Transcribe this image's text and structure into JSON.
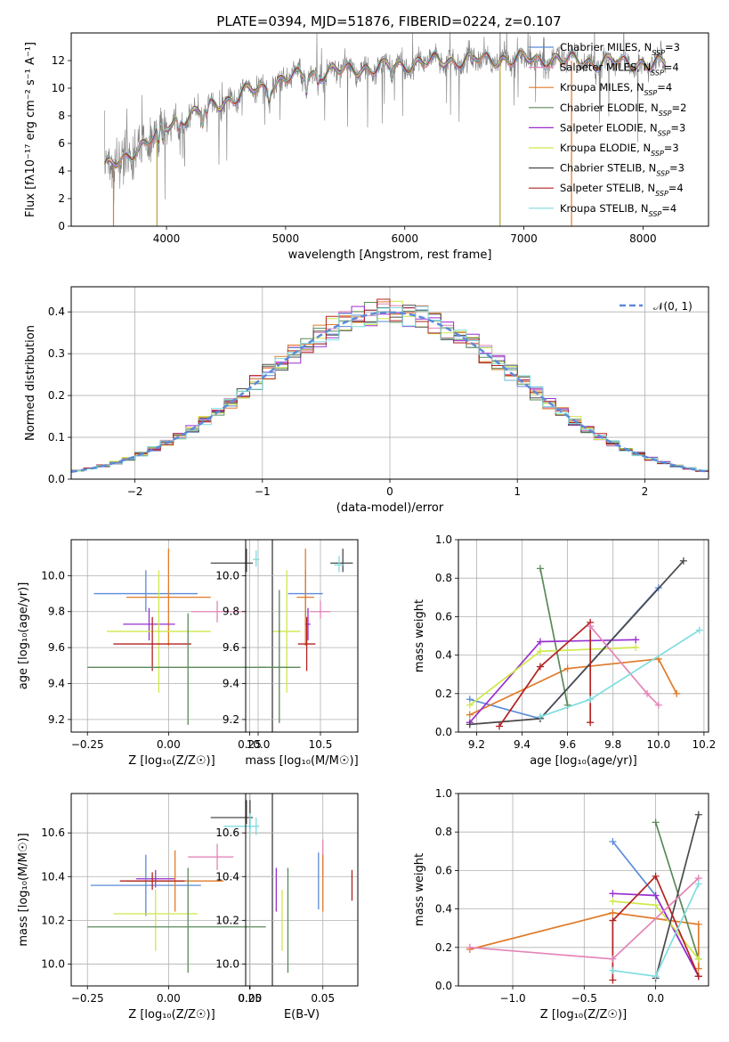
{
  "title": "PLATE=0394, MJD=51876, FIBERID=0224, z=0.107",
  "colors": {
    "c1": "#5b8bd9",
    "c2": "#e07b2a",
    "c3": "#5a8a5a",
    "c4": "#9a2fd0",
    "c5": "#cfe84a",
    "c6": "#4a4a4a",
    "c7": "#b22222",
    "c8": "#e484b8",
    "c9": "#7fdde0",
    "data": "#7f7f7f",
    "normal": "#5b8bd9"
  },
  "spectrum": {
    "xlabel": "wavelength [Angstrom, rest frame]",
    "ylabel": "Flux [fλ10⁻¹⁷ erg cm⁻² s⁻¹ A⁻¹]",
    "xlim": [
      3200,
      8550
    ],
    "ylim": [
      0,
      14
    ],
    "xticks": [
      "4000",
      "5000",
      "6000",
      "7000",
      "8000"
    ],
    "yticks": [
      "0",
      "2",
      "4",
      "6",
      "8",
      "10",
      "12"
    ],
    "continuum": [
      [
        3480,
        4.2
      ],
      [
        3600,
        4.6
      ],
      [
        3700,
        5.3
      ],
      [
        3800,
        5.9
      ],
      [
        3900,
        6.5
      ],
      [
        4000,
        7.2
      ],
      [
        4100,
        7.8
      ],
      [
        4200,
        8.0
      ],
      [
        4300,
        8.3
      ],
      [
        4400,
        8.8
      ],
      [
        4500,
        9.1
      ],
      [
        4600,
        9.4
      ],
      [
        4700,
        9.8
      ],
      [
        4800,
        10.0
      ],
      [
        4900,
        10.3
      ],
      [
        5000,
        10.7
      ],
      [
        5200,
        11.0
      ],
      [
        5400,
        11.2
      ],
      [
        5600,
        11.4
      ],
      [
        5800,
        11.5
      ],
      [
        6000,
        11.7
      ],
      [
        6200,
        11.9
      ],
      [
        6400,
        12.0
      ],
      [
        6600,
        12.1
      ],
      [
        6800,
        12.1
      ],
      [
        7000,
        12.1
      ],
      [
        7200,
        12.1
      ],
      [
        7400,
        12.0
      ],
      [
        7600,
        11.9
      ],
      [
        7800,
        11.9
      ],
      [
        8000,
        11.8
      ],
      [
        8100,
        11.7
      ],
      [
        8190,
        11.8
      ]
    ],
    "legend": [
      {
        "label": "Chabrier MILES, N",
        "sub": "SSP",
        "suffix": "=3",
        "color": "#5b8bd9"
      },
      {
        "label": "Salpeter MILES, N",
        "sub": "SSP",
        "suffix": "=4",
        "color": "#e484b8"
      },
      {
        "label": "Kroupa MILES, N",
        "sub": "SSP",
        "suffix": "=4",
        "color": "#e07b2a"
      },
      {
        "label": "Chabrier ELODIE, N",
        "sub": "SSP",
        "suffix": "=2",
        "color": "#5a8a5a"
      },
      {
        "label": "Salpeter ELODIE, N",
        "sub": "SSP",
        "suffix": "=3",
        "color": "#9a2fd0"
      },
      {
        "label": "Kroupa ELODIE, N",
        "sub": "SSP",
        "suffix": "=3",
        "color": "#cfe84a"
      },
      {
        "label": "Chabrier STELIB, N",
        "sub": "SSP",
        "suffix": "=3",
        "color": "#4a4a4a"
      },
      {
        "label": "Salpeter STELIB, N",
        "sub": "SSP",
        "suffix": "=4",
        "color": "#b22222"
      },
      {
        "label": "Kroupa STELIB, N",
        "sub": "SSP",
        "suffix": "=4",
        "color": "#7fdde0"
      }
    ]
  },
  "residuals": {
    "xlabel": "(data-model)/error",
    "ylabel": "Normed distribution",
    "xlim": [
      -2.5,
      2.5
    ],
    "ylim": [
      0,
      0.46
    ],
    "xticks": [
      "-2",
      "-1",
      "0",
      "1",
      "2"
    ],
    "yticks": [
      "0.0",
      "0.1",
      "0.2",
      "0.3",
      "0.4"
    ],
    "legend": "𝒩(0, 1)"
  },
  "chart_data": [
    {
      "type": "line",
      "title": "PLATE=0394, MJD=51876, FIBERID=0224, z=0.107",
      "xlabel": "wavelength [Angstrom, rest frame]",
      "ylabel": "Flux [fλ10⁻¹⁷ erg cm⁻² s⁻¹ A⁻¹]",
      "x_range": [
        3480,
        8190
      ],
      "ylim": [
        0,
        14
      ],
      "grid": false,
      "legend_position": "right"
    },
    {
      "type": "bar",
      "xlabel": "(data-model)/error",
      "ylabel": "Normed distribution",
      "xlim": [
        -2.5,
        2.5
      ],
      "ylim": [
        0,
        0.46
      ],
      "grid": true,
      "legend_position": "top-right",
      "series": [
        {
          "name": "𝒩(0, 1)",
          "type": "line"
        }
      ]
    },
    {
      "type": "scatter",
      "xlabel": "Z [log₁₀(Z/Z☉)]",
      "ylabel": "age  [log₁₀(age/yr)]",
      "xlim": [
        -0.3,
        0.32
      ],
      "ylim": [
        9.13,
        10.2
      ],
      "xticks": [
        "-0.25",
        "0.00",
        "0.25"
      ],
      "yticks": [
        "9.2",
        "9.4",
        "9.6",
        "9.8",
        "10.0"
      ],
      "points": [
        {
          "x": 0.24,
          "y": 10.07,
          "xerr": [
            0.11,
            0.02
          ],
          "yerr": [
            0.05,
            0.08
          ],
          "color": "#4a4a4a"
        },
        {
          "x": 0.27,
          "y": 10.09,
          "xerr": [
            0.01,
            0.01
          ],
          "yerr": [
            0.04,
            0.05
          ],
          "color": "#7fdde0"
        },
        {
          "x": -0.07,
          "y": 9.9,
          "xerr": [
            0.16,
            0.16
          ],
          "yerr": [
            0.1,
            0.13
          ],
          "color": "#5b8bd9"
        },
        {
          "x": 0.0,
          "y": 9.88,
          "xerr": [
            0.13,
            0.13
          ],
          "yerr": [
            0.27,
            0.27
          ],
          "color": "#e07b2a"
        },
        {
          "x": 0.15,
          "y": 9.8,
          "xerr": [
            0.08,
            0.08
          ],
          "yerr": [
            0.06,
            0.06
          ],
          "color": "#e484b8"
        },
        {
          "x": -0.06,
          "y": 9.73,
          "xerr": [
            0.08,
            0.08
          ],
          "yerr": [
            0.09,
            0.09
          ],
          "color": "#9a2fd0"
        },
        {
          "x": -0.03,
          "y": 9.69,
          "xerr": [
            0.16,
            0.16
          ],
          "yerr": [
            0.34,
            0.34
          ],
          "color": "#cfe84a"
        },
        {
          "x": -0.05,
          "y": 9.62,
          "xerr": [
            0.12,
            0.12
          ],
          "yerr": [
            0.15,
            0.15
          ],
          "color": "#b22222"
        },
        {
          "x": 0.06,
          "y": 9.49,
          "xerr": [
            0.31,
            0.24
          ],
          "yerr": [
            0.32,
            0.3
          ],
          "color": "#5a8a5a"
        }
      ]
    },
    {
      "type": "scatter",
      "xlabel": "mass [log₁₀(M/M☉)]",
      "ylabel": "",
      "xlim": [
        9.9,
        10.8
      ],
      "ylim": [
        9.13,
        10.2
      ],
      "xticks": [
        "10.0",
        "10.5"
      ],
      "yticks": [
        "9.2",
        "9.4",
        "9.6",
        "9.8",
        "10.0"
      ],
      "points": [
        {
          "x": 10.68,
          "y": 10.07,
          "xerr": [
            0.1,
            0.08
          ],
          "yerr": [
            0.05,
            0.08
          ],
          "color": "#4a4a4a"
        },
        {
          "x": 10.65,
          "y": 10.06,
          "xerr": [
            0.04,
            0.04
          ],
          "yerr": [
            0.04,
            0.05
          ],
          "color": "#7fdde0"
        },
        {
          "x": 10.38,
          "y": 9.9,
          "xerr": [
            0.14,
            0.14
          ],
          "yerr": [
            0.13,
            0.13
          ],
          "color": "#5b8bd9"
        },
        {
          "x": 10.38,
          "y": 9.88,
          "xerr": [
            0.07,
            0.07
          ],
          "yerr": [
            0.27,
            0.27
          ],
          "color": "#e07b2a"
        },
        {
          "x": 10.5,
          "y": 9.8,
          "xerr": [
            0.08,
            0.08
          ],
          "yerr": [
            0.04,
            0.06
          ],
          "color": "#e484b8"
        },
        {
          "x": 10.4,
          "y": 9.73,
          "xerr": [
            0.02,
            0.02
          ],
          "yerr": [
            0.09,
            0.09
          ],
          "color": "#9a2fd0"
        },
        {
          "x": 10.23,
          "y": 9.69,
          "xerr": [
            0.11,
            0.11
          ],
          "yerr": [
            0.34,
            0.34
          ],
          "color": "#cfe84a"
        },
        {
          "x": 10.39,
          "y": 9.62,
          "xerr": [
            0.07,
            0.07
          ],
          "yerr": [
            0.15,
            0.15
          ],
          "color": "#b22222"
        },
        {
          "x": 10.17,
          "y": 9.49,
          "xerr": [
            0.17,
            0.17
          ],
          "yerr": [
            0.31,
            0.43
          ],
          "color": "#5a8a5a"
        }
      ]
    },
    {
      "type": "line",
      "xlabel": "age  [log₁₀(age/yr)]",
      "ylabel": "mass weight",
      "xlim": [
        9.12,
        10.22
      ],
      "ylim": [
        0,
        1
      ],
      "xticks": [
        "9.2",
        "9.4",
        "9.6",
        "9.8",
        "10.0",
        "10.2"
      ],
      "yticks": [
        "0.0",
        "0.2",
        "0.4",
        "0.6",
        "0.8",
        "1.0"
      ],
      "series": [
        {
          "color": "#5b8bd9",
          "points": [
            [
              9.17,
              0.17
            ],
            [
              9.48,
              0.07
            ],
            [
              10.0,
              0.75
            ]
          ]
        },
        {
          "color": "#e07b2a",
          "points": [
            [
              9.17,
              0.09
            ],
            [
              9.6,
              0.33
            ],
            [
              10.0,
              0.38
            ],
            [
              10.08,
              0.2
            ]
          ]
        },
        {
          "color": "#5a8a5a",
          "points": [
            [
              9.48,
              0.85
            ],
            [
              9.6,
              0.14
            ]
          ]
        },
        {
          "color": "#9a2fd0",
          "points": [
            [
              9.17,
              0.05
            ],
            [
              9.48,
              0.47
            ],
            [
              9.9,
              0.48
            ]
          ]
        },
        {
          "color": "#cfe84a",
          "points": [
            [
              9.17,
              0.14
            ],
            [
              9.48,
              0.42
            ],
            [
              9.9,
              0.44
            ]
          ]
        },
        {
          "color": "#4a4a4a",
          "points": [
            [
              9.17,
              0.04
            ],
            [
              9.48,
              0.07
            ],
            [
              10.11,
              0.89
            ]
          ]
        },
        {
          "color": "#b22222",
          "points": [
            [
              9.3,
              0.03
            ],
            [
              9.48,
              0.34
            ],
            [
              9.7,
              0.57
            ],
            [
              9.7,
              0.05
            ]
          ]
        },
        {
          "color": "#e484b8",
          "points": [
            [
              9.7,
              0.55
            ],
            [
              9.95,
              0.2
            ],
            [
              10.0,
              0.14
            ]
          ]
        },
        {
          "color": "#7fdde0",
          "points": [
            [
              9.48,
              0.08
            ],
            [
              9.7,
              0.17
            ],
            [
              10.18,
              0.53
            ]
          ]
        }
      ]
    },
    {
      "type": "scatter",
      "xlabel": "Z [log₁₀(Z/Z☉)]",
      "ylabel": "mass [log₁₀(M/M☉)]",
      "xlim": [
        -0.3,
        0.32
      ],
      "ylim": [
        9.9,
        10.78
      ],
      "xticks": [
        "-0.25",
        "0.00",
        "0.25"
      ],
      "yticks": [
        "10.0",
        "10.2",
        "10.4",
        "10.6"
      ],
      "points": [
        {
          "x": 0.24,
          "y": 10.67,
          "xerr": [
            0.11,
            0.02
          ],
          "yerr": [
            0.03,
            0.08
          ],
          "color": "#4a4a4a"
        },
        {
          "x": 0.27,
          "y": 10.63,
          "xerr": [
            0.1,
            0.01
          ],
          "yerr": [
            0.04,
            0.04
          ],
          "color": "#7fdde0"
        },
        {
          "x": 0.15,
          "y": 10.49,
          "xerr": [
            0.09,
            0.05
          ],
          "yerr": [
            0.06,
            0.06
          ],
          "color": "#e484b8"
        },
        {
          "x": -0.04,
          "y": 10.39,
          "xerr": [
            0.06,
            0.06
          ],
          "yerr": [
            0.04,
            0.04
          ],
          "color": "#9a2fd0"
        },
        {
          "x": -0.07,
          "y": 10.36,
          "xerr": [
            0.17,
            0.17
          ],
          "yerr": [
            0.14,
            0.14
          ],
          "color": "#5b8bd9"
        },
        {
          "x": 0.02,
          "y": 10.38,
          "xerr": [
            0.15,
            0.15
          ],
          "yerr": [
            0.14,
            0.14
          ],
          "color": "#e07b2a"
        },
        {
          "x": -0.05,
          "y": 10.38,
          "xerr": [
            0.1,
            0.1
          ],
          "yerr": [
            0.04,
            0.04
          ],
          "color": "#b22222"
        },
        {
          "x": -0.04,
          "y": 10.23,
          "xerr": [
            0.13,
            0.13
          ],
          "yerr": [
            0.17,
            0.11
          ],
          "color": "#cfe84a"
        },
        {
          "x": 0.06,
          "y": 10.17,
          "xerr": [
            0.31,
            0.24
          ],
          "yerr": [
            0.21,
            0.27
          ],
          "color": "#5a8a5a"
        }
      ]
    },
    {
      "type": "scatter",
      "xlabel": "E(B-V)",
      "ylabel": "",
      "xlim": [
        -0.003,
        0.074
      ],
      "ylim": [
        9.9,
        10.78
      ],
      "xticks": [
        "0.00",
        "0.05"
      ],
      "yticks": [
        "10.0",
        "10.2",
        "10.4",
        "10.6"
      ],
      "points": [
        {
          "x": 0.0,
          "y": 10.68,
          "yerr": [
            0.06,
            0.07
          ],
          "color": "#4a4a4a"
        },
        {
          "x": 0.0,
          "y": 10.64,
          "yerr": [
            0.05,
            0.05
          ],
          "color": "#7fdde0"
        },
        {
          "x": 0.05,
          "y": 10.49,
          "yerr": [
            0.08,
            0.08
          ],
          "color": "#e484b8"
        },
        {
          "x": 0.047,
          "y": 10.38,
          "yerr": [
            0.13,
            0.13
          ],
          "color": "#5b8bd9"
        },
        {
          "x": 0.05,
          "y": 10.37,
          "yerr": [
            0.13,
            0.13
          ],
          "color": "#e07b2a"
        },
        {
          "x": 0.07,
          "y": 10.36,
          "yerr": [
            0.07,
            0.07
          ],
          "color": "#b22222"
        },
        {
          "x": 0.018,
          "y": 10.34,
          "yerr": [
            0.1,
            0.1
          ],
          "color": "#9a2fd0"
        },
        {
          "x": 0.022,
          "y": 10.2,
          "yerr": [
            0.14,
            0.14
          ],
          "color": "#cfe84a"
        },
        {
          "x": 0.026,
          "y": 10.2,
          "yerr": [
            0.24,
            0.24
          ],
          "color": "#5a8a5a"
        }
      ]
    },
    {
      "type": "line",
      "xlabel": "Z [log₁₀(Z/Z☉)]",
      "ylabel": "mass weight",
      "xlim": [
        -1.38,
        0.37
      ],
      "ylim": [
        0,
        1
      ],
      "xticks": [
        "-1.0",
        "-0.5",
        "0.0"
      ],
      "yticks": [
        "0.0",
        "0.2",
        "0.4",
        "0.6",
        "0.8",
        "1.0"
      ],
      "series": [
        {
          "color": "#5b8bd9",
          "points": [
            [
              -0.3,
              0.75
            ],
            [
              0.0,
              0.47
            ],
            [
              0.3,
              0.05
            ]
          ]
        },
        {
          "color": "#e07b2a",
          "points": [
            [
              -1.3,
              0.19
            ],
            [
              -0.3,
              0.38
            ],
            [
              0.3,
              0.32
            ],
            [
              0.3,
              0.09
            ]
          ]
        },
        {
          "color": "#5a8a5a",
          "points": [
            [
              0.0,
              0.85
            ],
            [
              0.3,
              0.14
            ]
          ]
        },
        {
          "color": "#9a2fd0",
          "points": [
            [
              -0.3,
              0.48
            ],
            [
              0.0,
              0.47
            ],
            [
              0.3,
              0.05
            ]
          ]
        },
        {
          "color": "#cfe84a",
          "points": [
            [
              -0.3,
              0.44
            ],
            [
              0.0,
              0.42
            ],
            [
              0.3,
              0.14
            ]
          ]
        },
        {
          "color": "#4a4a4a",
          "points": [
            [
              0.0,
              0.04
            ],
            [
              0.3,
              0.89
            ]
          ]
        },
        {
          "color": "#b22222",
          "points": [
            [
              -0.3,
              0.03
            ],
            [
              -0.3,
              0.34
            ],
            [
              0.0,
              0.57
            ],
            [
              0.3,
              0.05
            ]
          ]
        },
        {
          "color": "#e484b8",
          "points": [
            [
              -1.3,
              0.2
            ],
            [
              -0.3,
              0.14
            ],
            [
              0.3,
              0.56
            ]
          ]
        },
        {
          "color": "#7fdde0",
          "points": [
            [
              -0.3,
              0.08
            ],
            [
              0.0,
              0.05
            ],
            [
              0.3,
              0.53
            ]
          ]
        }
      ]
    }
  ]
}
